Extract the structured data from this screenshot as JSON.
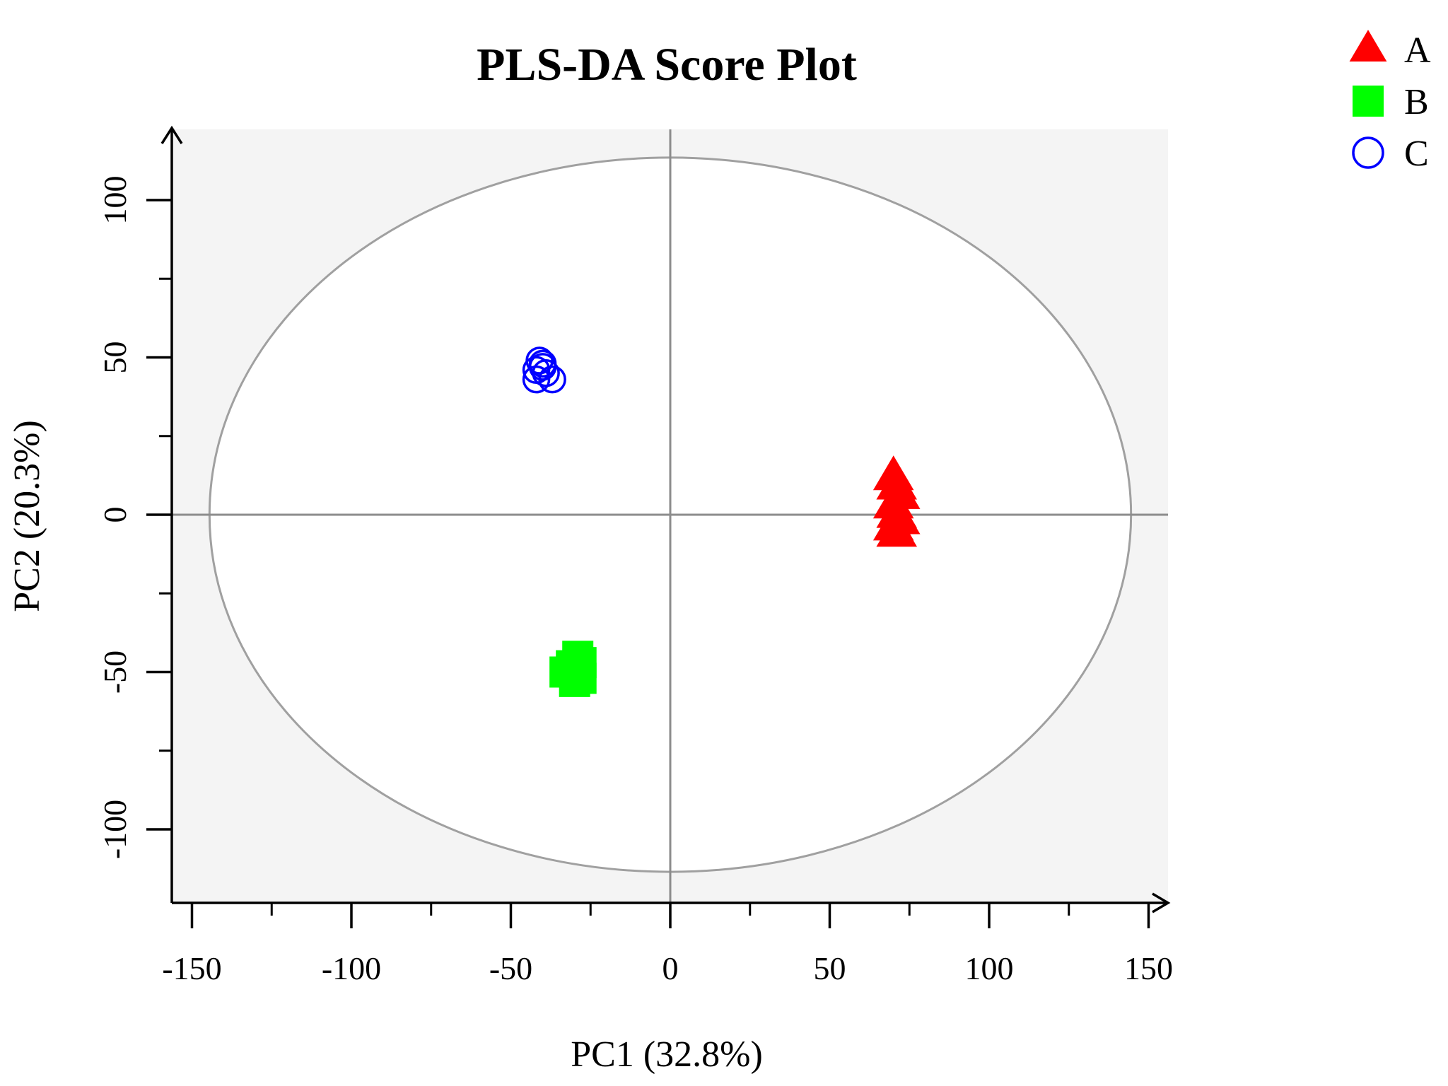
{
  "chart_data": {
    "type": "scatter",
    "title": "PLS-DA Score Plot",
    "xlabel": "PC1 (32.8%)",
    "ylabel": "PC2 (20.3%)",
    "xlim": [
      -155,
      155
    ],
    "ylim": [
      -122,
      122
    ],
    "xticks": [
      -150,
      -100,
      -50,
      0,
      50,
      100,
      150
    ],
    "yticks": [
      -100,
      -50,
      0,
      50,
      100
    ],
    "grid": false,
    "legend_position": "top-right",
    "background": "#f4f4f4",
    "confidence_ellipse": {
      "center": [
        0,
        0
      ],
      "radius_x": 144.5,
      "radius_y": 113.5,
      "color": "#a0a0a0"
    },
    "series": [
      {
        "name": "A",
        "marker": "triangle",
        "color": "#ff0000",
        "filled": true,
        "points": [
          [
            70,
            12
          ],
          [
            71,
            9
          ],
          [
            72,
            6
          ],
          [
            70,
            3
          ],
          [
            71,
            0
          ],
          [
            72,
            -2
          ],
          [
            70,
            -4
          ],
          [
            71,
            -6
          ]
        ]
      },
      {
        "name": "B",
        "marker": "square",
        "color": "#00ff00",
        "filled": true,
        "points": [
          [
            -29,
            -45
          ],
          [
            -28,
            -47
          ],
          [
            -31,
            -48
          ],
          [
            -33,
            -50
          ],
          [
            -29,
            -51
          ],
          [
            -30,
            -53
          ],
          [
            -28,
            -52
          ]
        ]
      },
      {
        "name": "C",
        "marker": "circle",
        "color": "#0000ff",
        "filled": false,
        "points": [
          [
            -41,
            49
          ],
          [
            -40,
            47
          ],
          [
            -42,
            46
          ],
          [
            -39,
            45
          ],
          [
            -37,
            43
          ],
          [
            -42,
            43
          ],
          [
            -40,
            48
          ]
        ]
      }
    ]
  }
}
